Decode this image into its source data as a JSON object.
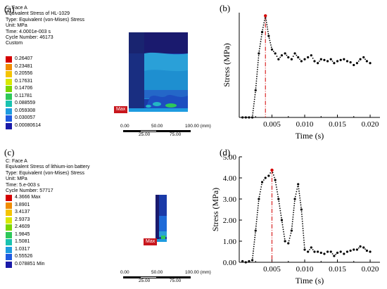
{
  "panels": [
    {
      "tag": "(a)",
      "info": [
        "C: Face A",
        "Equivalent Stress of HL-1029",
        "Type: Equivalent (von-Mises) Stress",
        "Unit: MPa",
        "Time: 4.0001e-003 s",
        "Cycle Number: 46173",
        "Custom"
      ],
      "legend": [
        "0.26407",
        "0.23481",
        "0.20556",
        "0.17631",
        "0.14706",
        "0.11781",
        "0.088559",
        "0.059308",
        "0.030057",
        "0.00080614"
      ],
      "legend_colors": [
        "#d40000",
        "#f08c00",
        "#f5c400",
        "#d9e800",
        "#7ad600",
        "#2ec85a",
        "#19c3b0",
        "#1e9ce0",
        "#1f5ae0",
        "#1a1aa8"
      ],
      "max_label": "Max",
      "scale_top": [
        "0.00",
        "50.00",
        "100.00 (mm)"
      ],
      "scale_bottom": [
        "25.00",
        "75.00"
      ]
    },
    {
      "tag": "(c)",
      "info": [
        "C: Face A",
        "Equivalent Stress of lithium-ion battery",
        "Type: Equivalent (von-Mises) Stress",
        "Unit: MPa",
        "Time: 5.e-003 s",
        "Cycle Number: 57717"
      ],
      "legend": [
        "4.3666 Max",
        "3.8901",
        "3.4137",
        "2.9373",
        "2.4609",
        "1.9845",
        "1.5081",
        "1.0317",
        "0.55526",
        "0.078851 Min"
      ],
      "legend_colors": [
        "#d40000",
        "#f08c00",
        "#f5c400",
        "#d9e800",
        "#7ad600",
        "#2ec85a",
        "#19c3b0",
        "#1e9ce0",
        "#1f5ae0",
        "#1a1aa8"
      ],
      "max_label": "Max",
      "scale_top": [
        "0.00",
        "50.00",
        "100.00 (mm)"
      ],
      "scale_bottom": [
        "25.00",
        "75.00"
      ]
    }
  ],
  "chart_data": [
    {
      "tag": "(b)",
      "type": "scatter",
      "xlabel": "Time (s)",
      "ylabel": "Stress (MPa)",
      "xlim": [
        0,
        0.0215
      ],
      "ylim": [
        0,
        0.27
      ],
      "xticks": [
        "0.005",
        "0.010",
        "0.015",
        "0.020"
      ],
      "yticks": [],
      "marker_x": 0.004,
      "peak_color": "#d40000",
      "x": [
        0.0005,
        0.001,
        0.0015,
        0.002,
        0.0025,
        0.003,
        0.0035,
        0.004,
        0.0045,
        0.005,
        0.0055,
        0.006,
        0.0065,
        0.007,
        0.0075,
        0.008,
        0.0085,
        0.009,
        0.0095,
        0.01,
        0.0105,
        0.011,
        0.0115,
        0.012,
        0.0125,
        0.013,
        0.0135,
        0.014,
        0.0145,
        0.015,
        0.0155,
        0.016,
        0.0165,
        0.017,
        0.0175,
        0.018,
        0.0185,
        0.019,
        0.0195,
        0.02
      ],
      "y": [
        0.0,
        0.0,
        0.0,
        0.0,
        0.07,
        0.165,
        0.22,
        0.262,
        0.21,
        0.175,
        0.165,
        0.15,
        0.16,
        0.165,
        0.155,
        0.15,
        0.165,
        0.155,
        0.145,
        0.15,
        0.155,
        0.16,
        0.145,
        0.14,
        0.15,
        0.148,
        0.145,
        0.15,
        0.14,
        0.145,
        0.148,
        0.15,
        0.145,
        0.142,
        0.135,
        0.14,
        0.15,
        0.155,
        0.145,
        0.14
      ]
    },
    {
      "tag": "(d)",
      "type": "scatter",
      "xlabel": "Time (s)",
      "ylabel": "Stress (MPa)",
      "xlim": [
        0,
        0.0215
      ],
      "ylim": [
        0,
        5.0
      ],
      "xticks": [
        "0.005",
        "0.010",
        "0.015",
        "0.020"
      ],
      "yticks": [
        "0.00",
        "1.00",
        "2.00",
        "3.00",
        "4.00",
        "5.00"
      ],
      "marker_x": 0.005,
      "peak_color": "#d40000",
      "x": [
        0.0005,
        0.001,
        0.0015,
        0.002,
        0.0025,
        0.003,
        0.0035,
        0.004,
        0.0045,
        0.005,
        0.0055,
        0.006,
        0.0065,
        0.007,
        0.0075,
        0.008,
        0.0085,
        0.009,
        0.0095,
        0.01,
        0.0105,
        0.011,
        0.0115,
        0.012,
        0.0125,
        0.013,
        0.0135,
        0.014,
        0.0145,
        0.015,
        0.0155,
        0.016,
        0.0165,
        0.017,
        0.0175,
        0.018,
        0.0185,
        0.019,
        0.0195,
        0.02
      ],
      "y": [
        0.05,
        0.0,
        0.05,
        0.1,
        1.5,
        3.0,
        3.8,
        4.0,
        4.1,
        4.37,
        3.9,
        3.0,
        2.0,
        1.0,
        0.9,
        1.5,
        3.0,
        3.7,
        2.5,
        0.6,
        0.5,
        0.7,
        0.5,
        0.5,
        0.45,
        0.4,
        0.5,
        0.5,
        0.3,
        0.45,
        0.5,
        0.4,
        0.5,
        0.55,
        0.6,
        0.6,
        0.75,
        0.7,
        0.55,
        0.5
      ]
    }
  ]
}
